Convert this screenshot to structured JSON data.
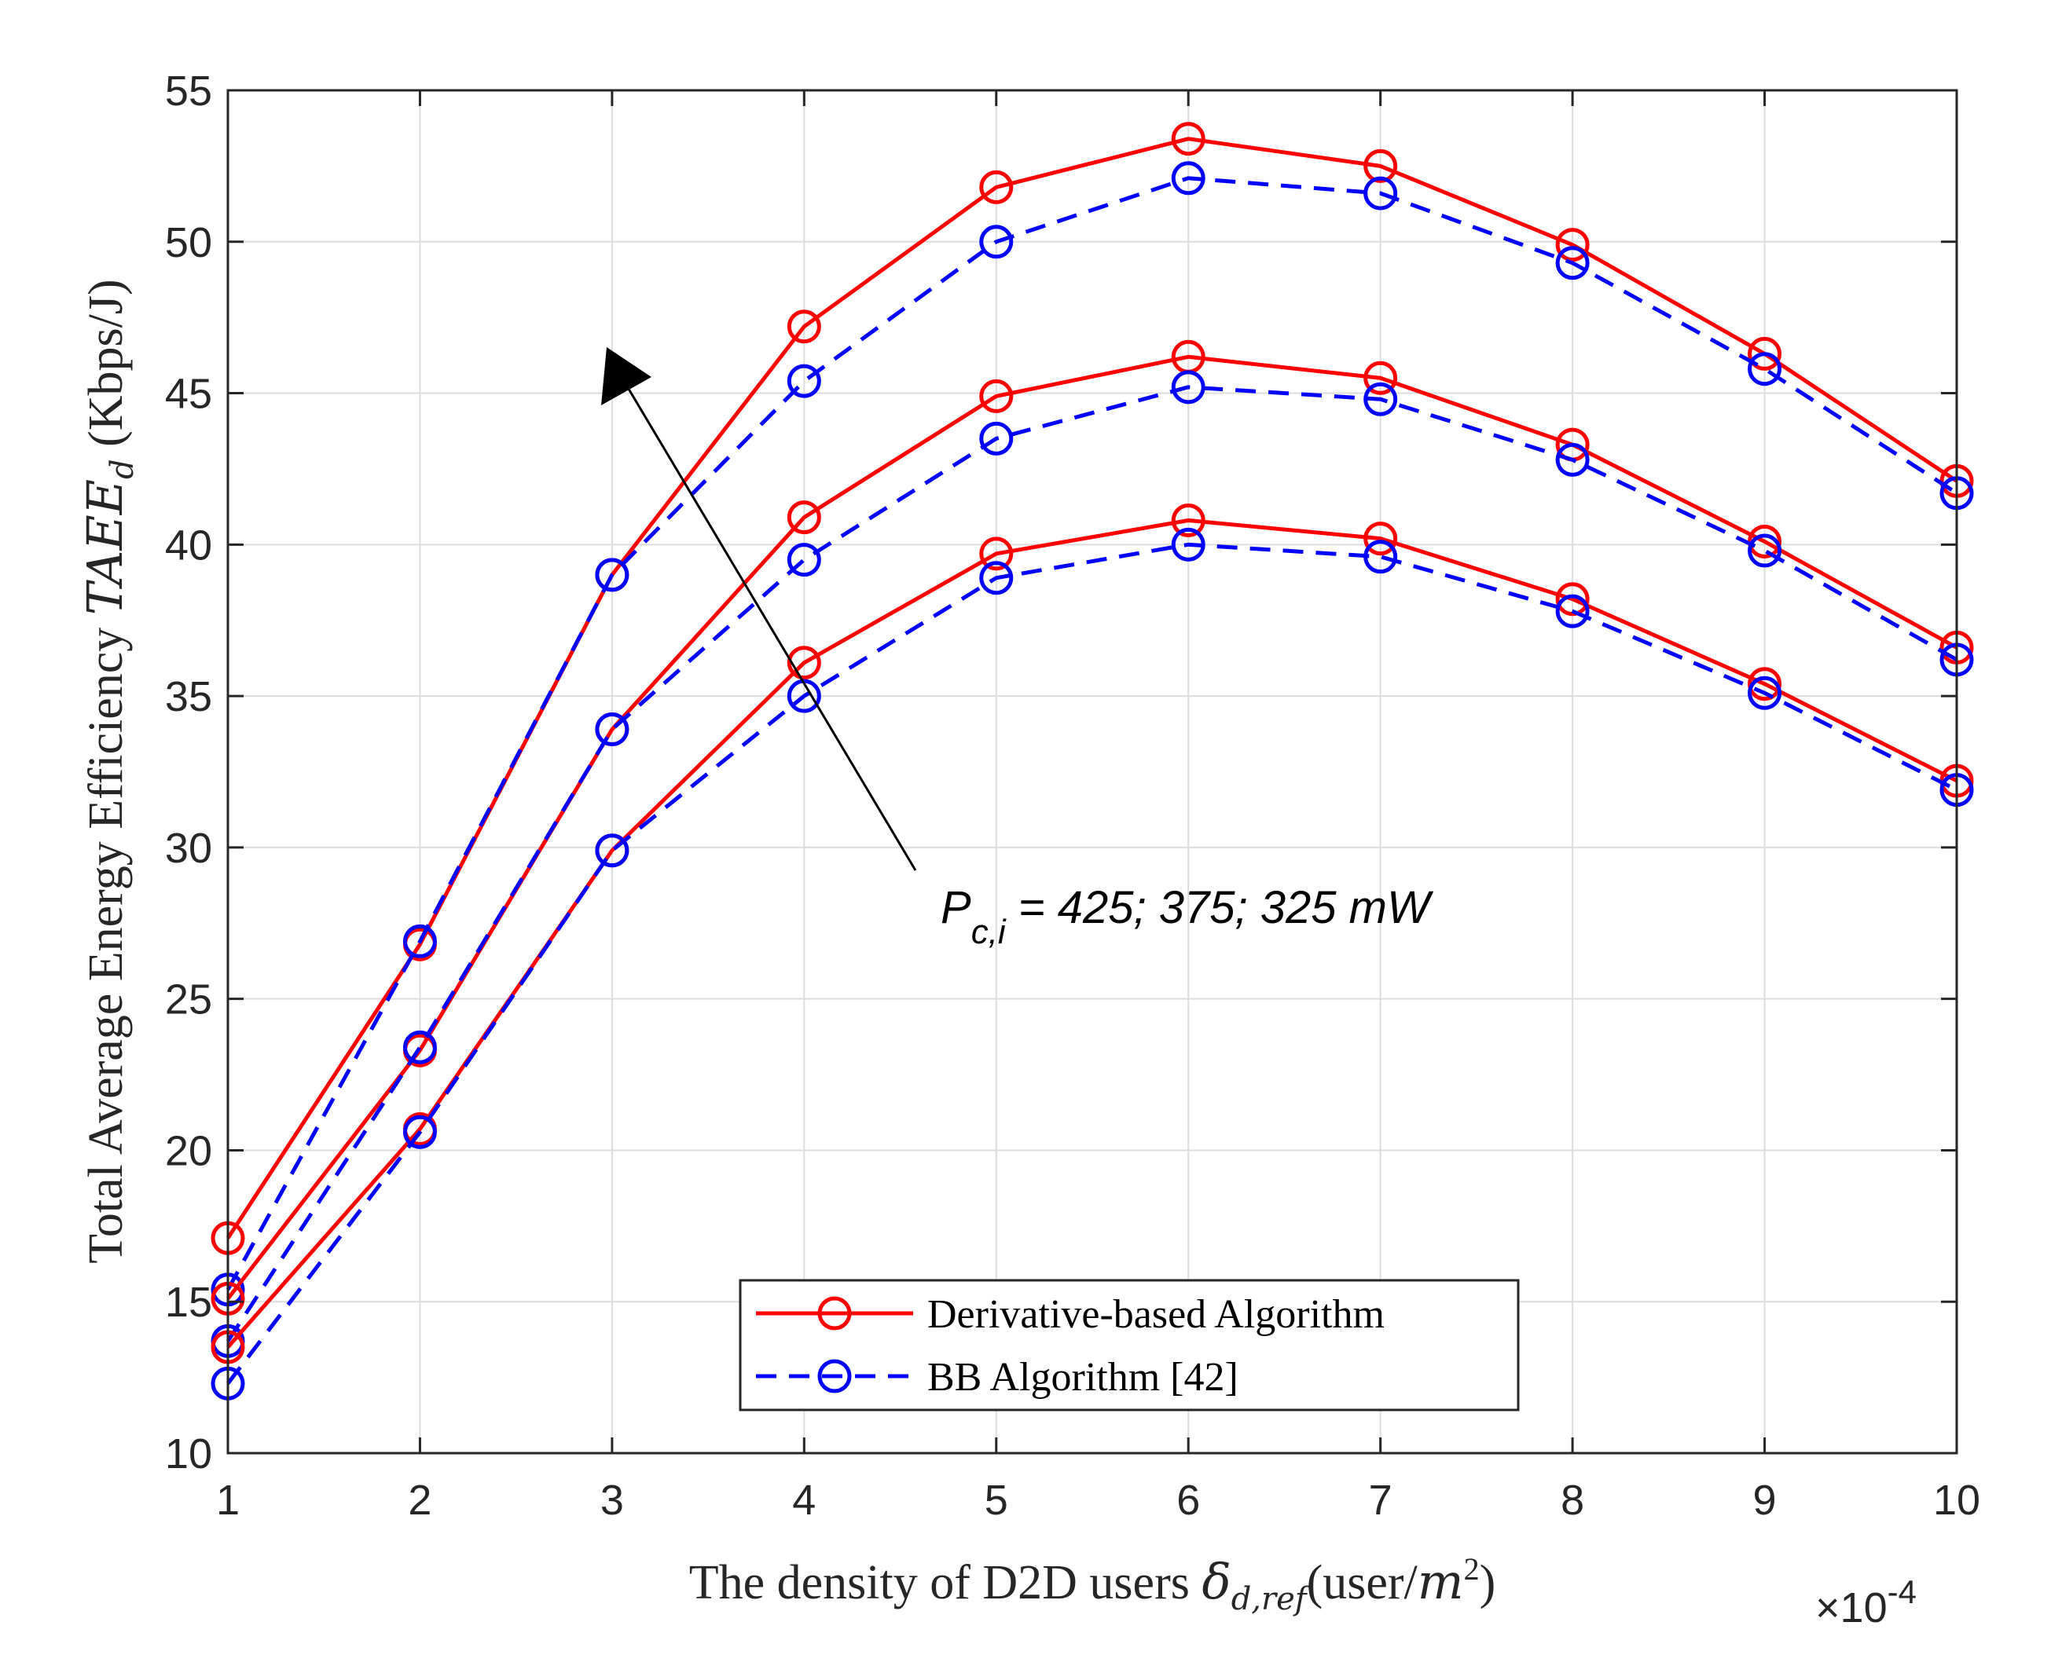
{
  "chart_data": {
    "type": "line",
    "x": [
      1,
      2,
      3,
      4,
      5,
      6,
      7,
      8,
      9,
      10
    ],
    "xlim": [
      1,
      10
    ],
    "ylim": [
      10,
      55
    ],
    "xticks": [
      "1",
      "2",
      "3",
      "4",
      "5",
      "6",
      "7",
      "8",
      "9",
      "10"
    ],
    "yticks": [
      "10",
      "15",
      "20",
      "25",
      "30",
      "35",
      "40",
      "45",
      "50",
      "55"
    ],
    "x_exponent": {
      "base": "×10",
      "power": "-4"
    },
    "grid": true,
    "xlabel": {
      "text": "The density of D2D users ",
      "symbol": "δ",
      "subscript": "d,ref",
      "unit_open": "(user/",
      "unit_var": "m",
      "unit_sup": "2",
      "unit_close": ")"
    },
    "ylabel": {
      "text": "Total Average Energy Efficiency ",
      "symbol": "TAEE",
      "subscript": "d",
      "unit": " (Kbps/J)"
    },
    "legend": {
      "position": "bottom-center",
      "entries": [
        "Derivative-based Algorithm",
        "BB Algorithm [42]"
      ]
    },
    "annotation": {
      "P": "P",
      "sub": "c,i",
      "rest": " = 425; 375; 325 mW"
    },
    "colors": {
      "derivative": "#ff0000",
      "bb": "#0000ff",
      "grid": "#dcdcdc",
      "axis": "#262626"
    },
    "series": [
      {
        "name": "Derivative-based Algorithm",
        "group": "425 mW",
        "style": "solid",
        "values": [
          17.1,
          26.8,
          39.0,
          47.2,
          51.8,
          53.4,
          52.5,
          49.9,
          46.3,
          42.1
        ]
      },
      {
        "name": "BB Algorithm [42]",
        "group": "425 mW",
        "style": "dashed",
        "values": [
          15.4,
          26.9,
          39.0,
          45.4,
          50.0,
          52.1,
          51.6,
          49.3,
          45.8,
          41.7
        ]
      },
      {
        "name": "Derivative-based Algorithm",
        "group": "375 mW",
        "style": "solid",
        "values": [
          15.1,
          23.3,
          33.9,
          40.9,
          44.9,
          46.2,
          45.5,
          43.3,
          40.1,
          36.6
        ]
      },
      {
        "name": "BB Algorithm [42]",
        "group": "375 mW",
        "style": "dashed",
        "values": [
          13.7,
          23.4,
          33.9,
          39.5,
          43.5,
          45.2,
          44.8,
          42.8,
          39.8,
          36.2
        ]
      },
      {
        "name": "Derivative-based Algorithm",
        "group": "325 mW",
        "style": "solid",
        "values": [
          13.5,
          20.7,
          29.9,
          36.1,
          39.7,
          40.8,
          40.2,
          38.2,
          35.4,
          32.2
        ]
      },
      {
        "name": "BB Algorithm [42]",
        "group": "325 mW",
        "style": "dashed",
        "values": [
          12.3,
          20.6,
          29.9,
          35.0,
          38.9,
          40.0,
          39.6,
          37.8,
          35.1,
          31.9
        ]
      }
    ]
  }
}
